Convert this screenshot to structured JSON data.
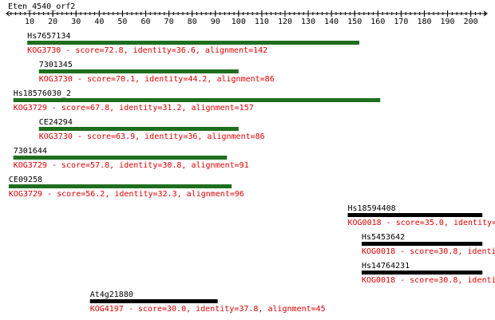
{
  "chart_data": {
    "type": "alignment",
    "title": "Eten_4540_orf2",
    "xlim": [
      0,
      207
    ],
    "xticks": [
      10,
      20,
      30,
      40,
      50,
      60,
      70,
      80,
      90,
      100,
      110,
      120,
      130,
      140,
      150,
      160,
      170,
      180,
      190,
      200
    ],
    "minor_tick_step": 2,
    "axis_color": "#000000",
    "label_color": "#dd0000",
    "tracks": [
      {
        "name": "Hs7657134",
        "label": "KOG3730 - score=72.8, identity=36.6, alignment=142",
        "start": 9,
        "end": 152,
        "color": "#1e6e1e"
      },
      {
        "name": "7301345",
        "label": "KOG3730 - score=70.1, identity=44.2, alignment=86",
        "start": 14,
        "end": 100,
        "color": "#1e6e1e"
      },
      {
        "name": "Hs18576030_2",
        "label": "KOG3729 - score=67.8, identity=31.2, alignment=157",
        "start": 3,
        "end": 161,
        "color": "#1e6e1e"
      },
      {
        "name": "CE24294",
        "label": "KOG3730 - score=63.9, identity=36, alignment=86",
        "start": 14,
        "end": 100,
        "color": "#1e6e1e"
      },
      {
        "name": "7301644",
        "label": "KOG3729 - score=57.8, identity=30.8, alignment=91",
        "start": 3,
        "end": 95,
        "color": "#1e6e1e"
      },
      {
        "name": "CE09258",
        "label": "KOG3729 - score=56.2, identity=32.3, alignment=96",
        "start": 1,
        "end": 97,
        "color": "#1e6e1e"
      },
      {
        "name": "Hs18594408",
        "label": "KOG0018 - score=35.0, identity=",
        "start": 147,
        "end": 205,
        "color": "#000000"
      },
      {
        "name": "Hs5453642",
        "label": "KOG0018 - score=30.8, identi",
        "start": 153,
        "end": 205,
        "color": "#000000"
      },
      {
        "name": "Hs14764231",
        "label": "KOG0018 - score=30.8, identi",
        "start": 153,
        "end": 205,
        "color": "#000000"
      },
      {
        "name": "At4g21880",
        "label": "KOG4197 - score=30.0, identity=37.8, alignment=45",
        "start": 36,
        "end": 91,
        "color": "#000000"
      }
    ]
  }
}
